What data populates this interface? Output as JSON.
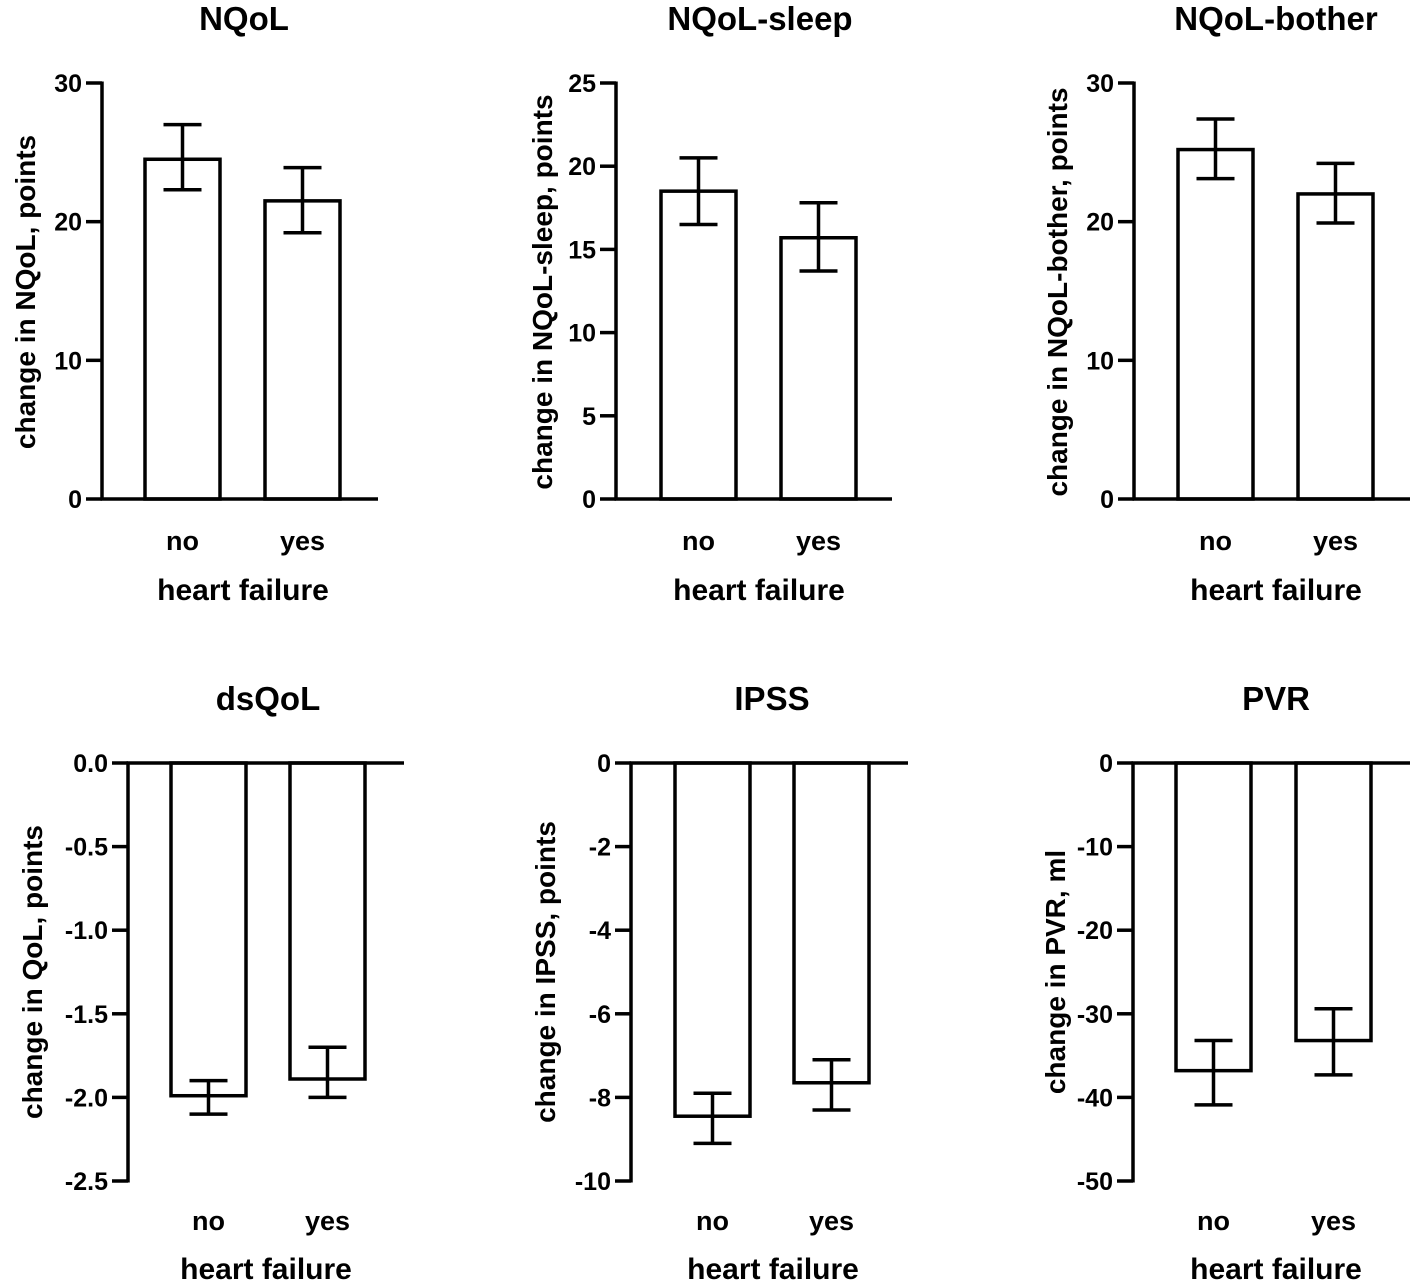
{
  "chart_data": [
    {
      "type": "bar",
      "title": "NQoL",
      "categories": [
        "no",
        "yes"
      ],
      "values": [
        24.5,
        21.5
      ],
      "errors": [
        {
          "low": 22.3,
          "high": 27.0
        },
        {
          "low": 19.2,
          "high": 23.9
        }
      ],
      "ylim": [
        0,
        30
      ],
      "yticks": [
        0,
        10,
        20,
        30
      ],
      "tick_labels": [
        "0",
        "10",
        "20",
        "30"
      ],
      "xlabel": "heart failure",
      "ylabel": "change in NQoL, points"
    },
    {
      "type": "bar",
      "title": "NQoL-sleep",
      "categories": [
        "no",
        "yes"
      ],
      "values": [
        18.5,
        15.7
      ],
      "errors": [
        {
          "low": 16.5,
          "high": 20.5
        },
        {
          "low": 13.7,
          "high": 17.8
        }
      ],
      "ylim": [
        0,
        25
      ],
      "yticks": [
        0,
        5,
        10,
        15,
        20,
        25
      ],
      "tick_labels": [
        "0",
        "5",
        "10",
        "15",
        "20",
        "25"
      ],
      "xlabel": "heart failure",
      "ylabel": "change in NQoL-sleep, points"
    },
    {
      "type": "bar",
      "title": "NQoL-bother",
      "categories": [
        "no",
        "yes"
      ],
      "values": [
        25.2,
        22.0
      ],
      "errors": [
        {
          "low": 23.1,
          "high": 27.4
        },
        {
          "low": 19.9,
          "high": 24.2
        }
      ],
      "ylim": [
        0,
        30
      ],
      "yticks": [
        0,
        10,
        20,
        30
      ],
      "tick_labels": [
        "0",
        "10",
        "20",
        "30"
      ],
      "xlabel": "heart failure",
      "ylabel": "change in NQoL-bother, points"
    },
    {
      "type": "bar",
      "title": "dsQoL",
      "categories": [
        "no",
        "yes"
      ],
      "values": [
        -1.99,
        -1.89
      ],
      "errors": [
        {
          "low": -2.1,
          "high": -1.9
        },
        {
          "low": -2.0,
          "high": -1.7
        }
      ],
      "ylim": [
        -2.5,
        0
      ],
      "yticks": [
        0,
        -0.5,
        -1,
        -1.5,
        -2,
        -2.5
      ],
      "tick_labels": [
        "0.0",
        "-0.5",
        "-1.0",
        "-1.5",
        "-2.0",
        "-2.5"
      ],
      "xlabel": "heart failure",
      "ylabel": "change in QoL, points"
    },
    {
      "type": "bar",
      "title": "IPSS",
      "categories": [
        "no",
        "yes"
      ],
      "values": [
        -8.45,
        -7.65
      ],
      "errors": [
        {
          "low": -9.1,
          "high": -7.9
        },
        {
          "low": -8.3,
          "high": -7.1
        }
      ],
      "ylim": [
        -10,
        0
      ],
      "yticks": [
        0,
        -2,
        -4,
        -6,
        -8,
        -10
      ],
      "tick_labels": [
        "0",
        "-2",
        "-4",
        "-6",
        "-8",
        "-10"
      ],
      "xlabel": "heart failure",
      "ylabel": "change in IPSS, points"
    },
    {
      "type": "bar",
      "title": "PVR",
      "categories": [
        "no",
        "yes"
      ],
      "values": [
        -36.8,
        -33.2
      ],
      "errors": [
        {
          "low": -40.9,
          "high": -33.2
        },
        {
          "low": -37.3,
          "high": -29.4
        }
      ],
      "ylim": [
        -50,
        0
      ],
      "yticks": [
        0,
        -10,
        -20,
        -30,
        -40,
        -50
      ],
      "tick_labels": [
        "0",
        "-10",
        "-20",
        "-30",
        "-40",
        "-50"
      ],
      "xlabel": "heart failure",
      "ylabel": "change in PVR, ml"
    }
  ]
}
